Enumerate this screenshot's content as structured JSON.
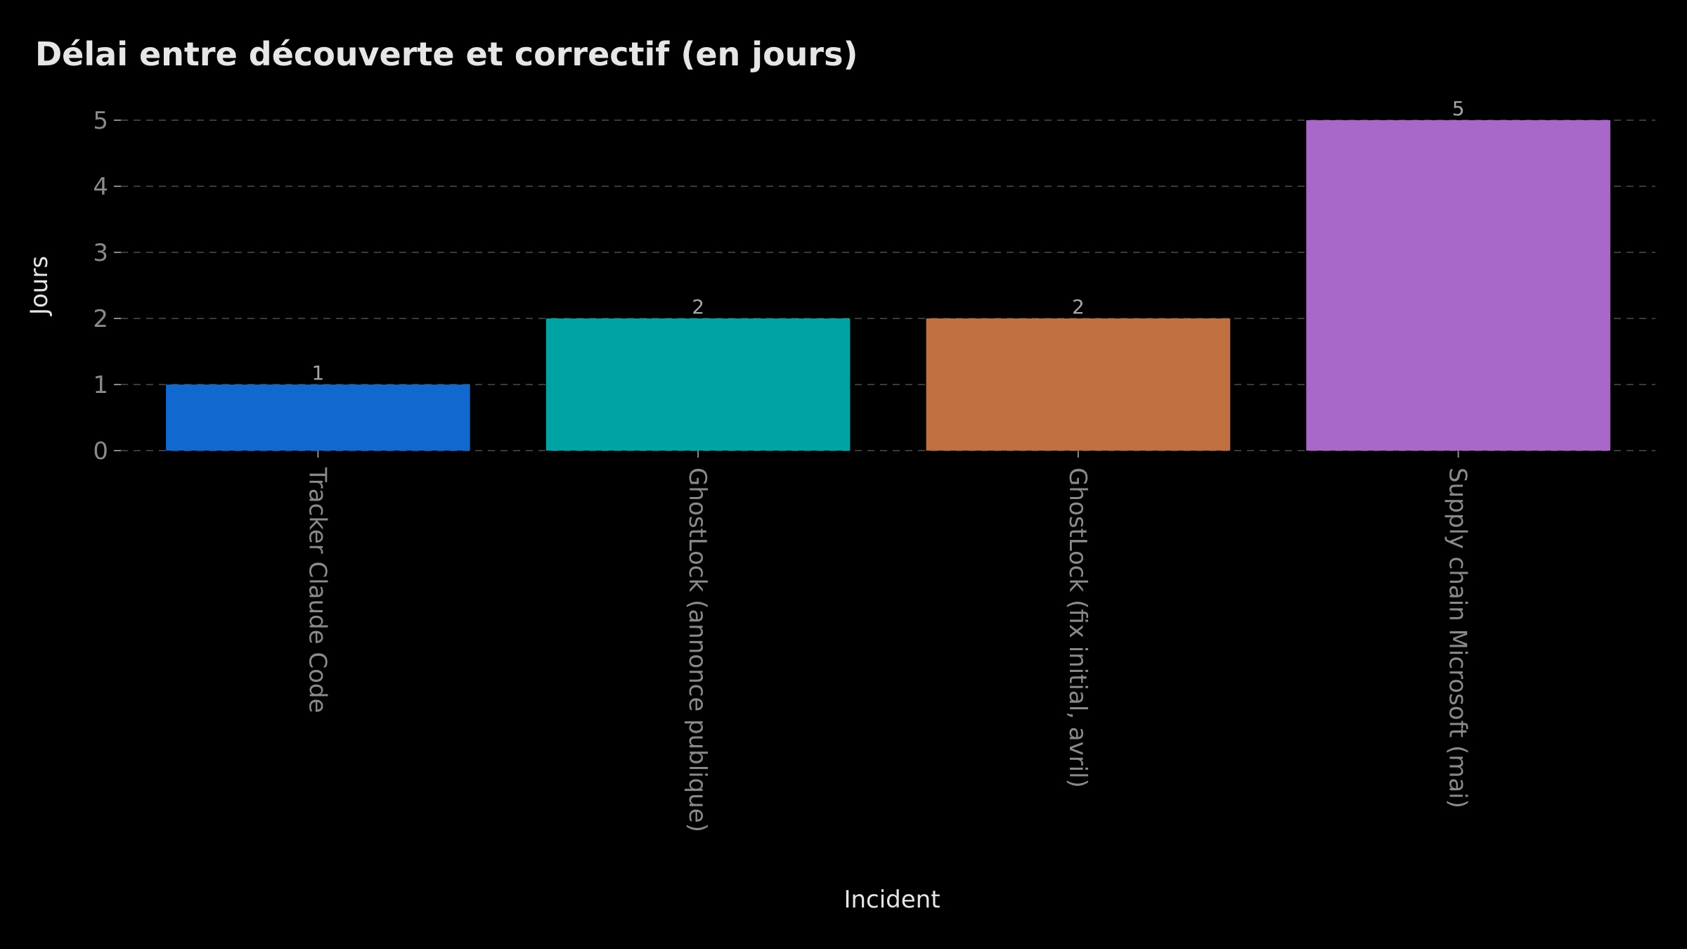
{
  "chart_data": {
    "type": "bar",
    "title": "Délai entre découverte et correctif (en jours)",
    "xlabel": "Incident",
    "ylabel": "Jours",
    "categories": [
      "Tracker Claude Code",
      "GhostLock (annonce publique)",
      "GhostLock (fix initial, avril)",
      "Supply chain Microsoft (mai)"
    ],
    "values": [
      1,
      2,
      2,
      5
    ],
    "data_labels": [
      "1",
      "2",
      "2",
      "5"
    ],
    "bar_colors": [
      "#1168cf",
      "#00a3a3",
      "#c06f40",
      "#a868c9"
    ],
    "ylim": [
      0,
      5
    ],
    "yticks": [
      0,
      1,
      2,
      3,
      4,
      5
    ],
    "grid": "horizontal-dashed",
    "legend": "none",
    "colors": {
      "background": "#000000",
      "title": "#e6e6e6",
      "axis_label": "#e6e6e6",
      "tick_label": "#8a8a8a",
      "data_label": "#a6a6a6",
      "grid": "#3a3a3a"
    }
  }
}
